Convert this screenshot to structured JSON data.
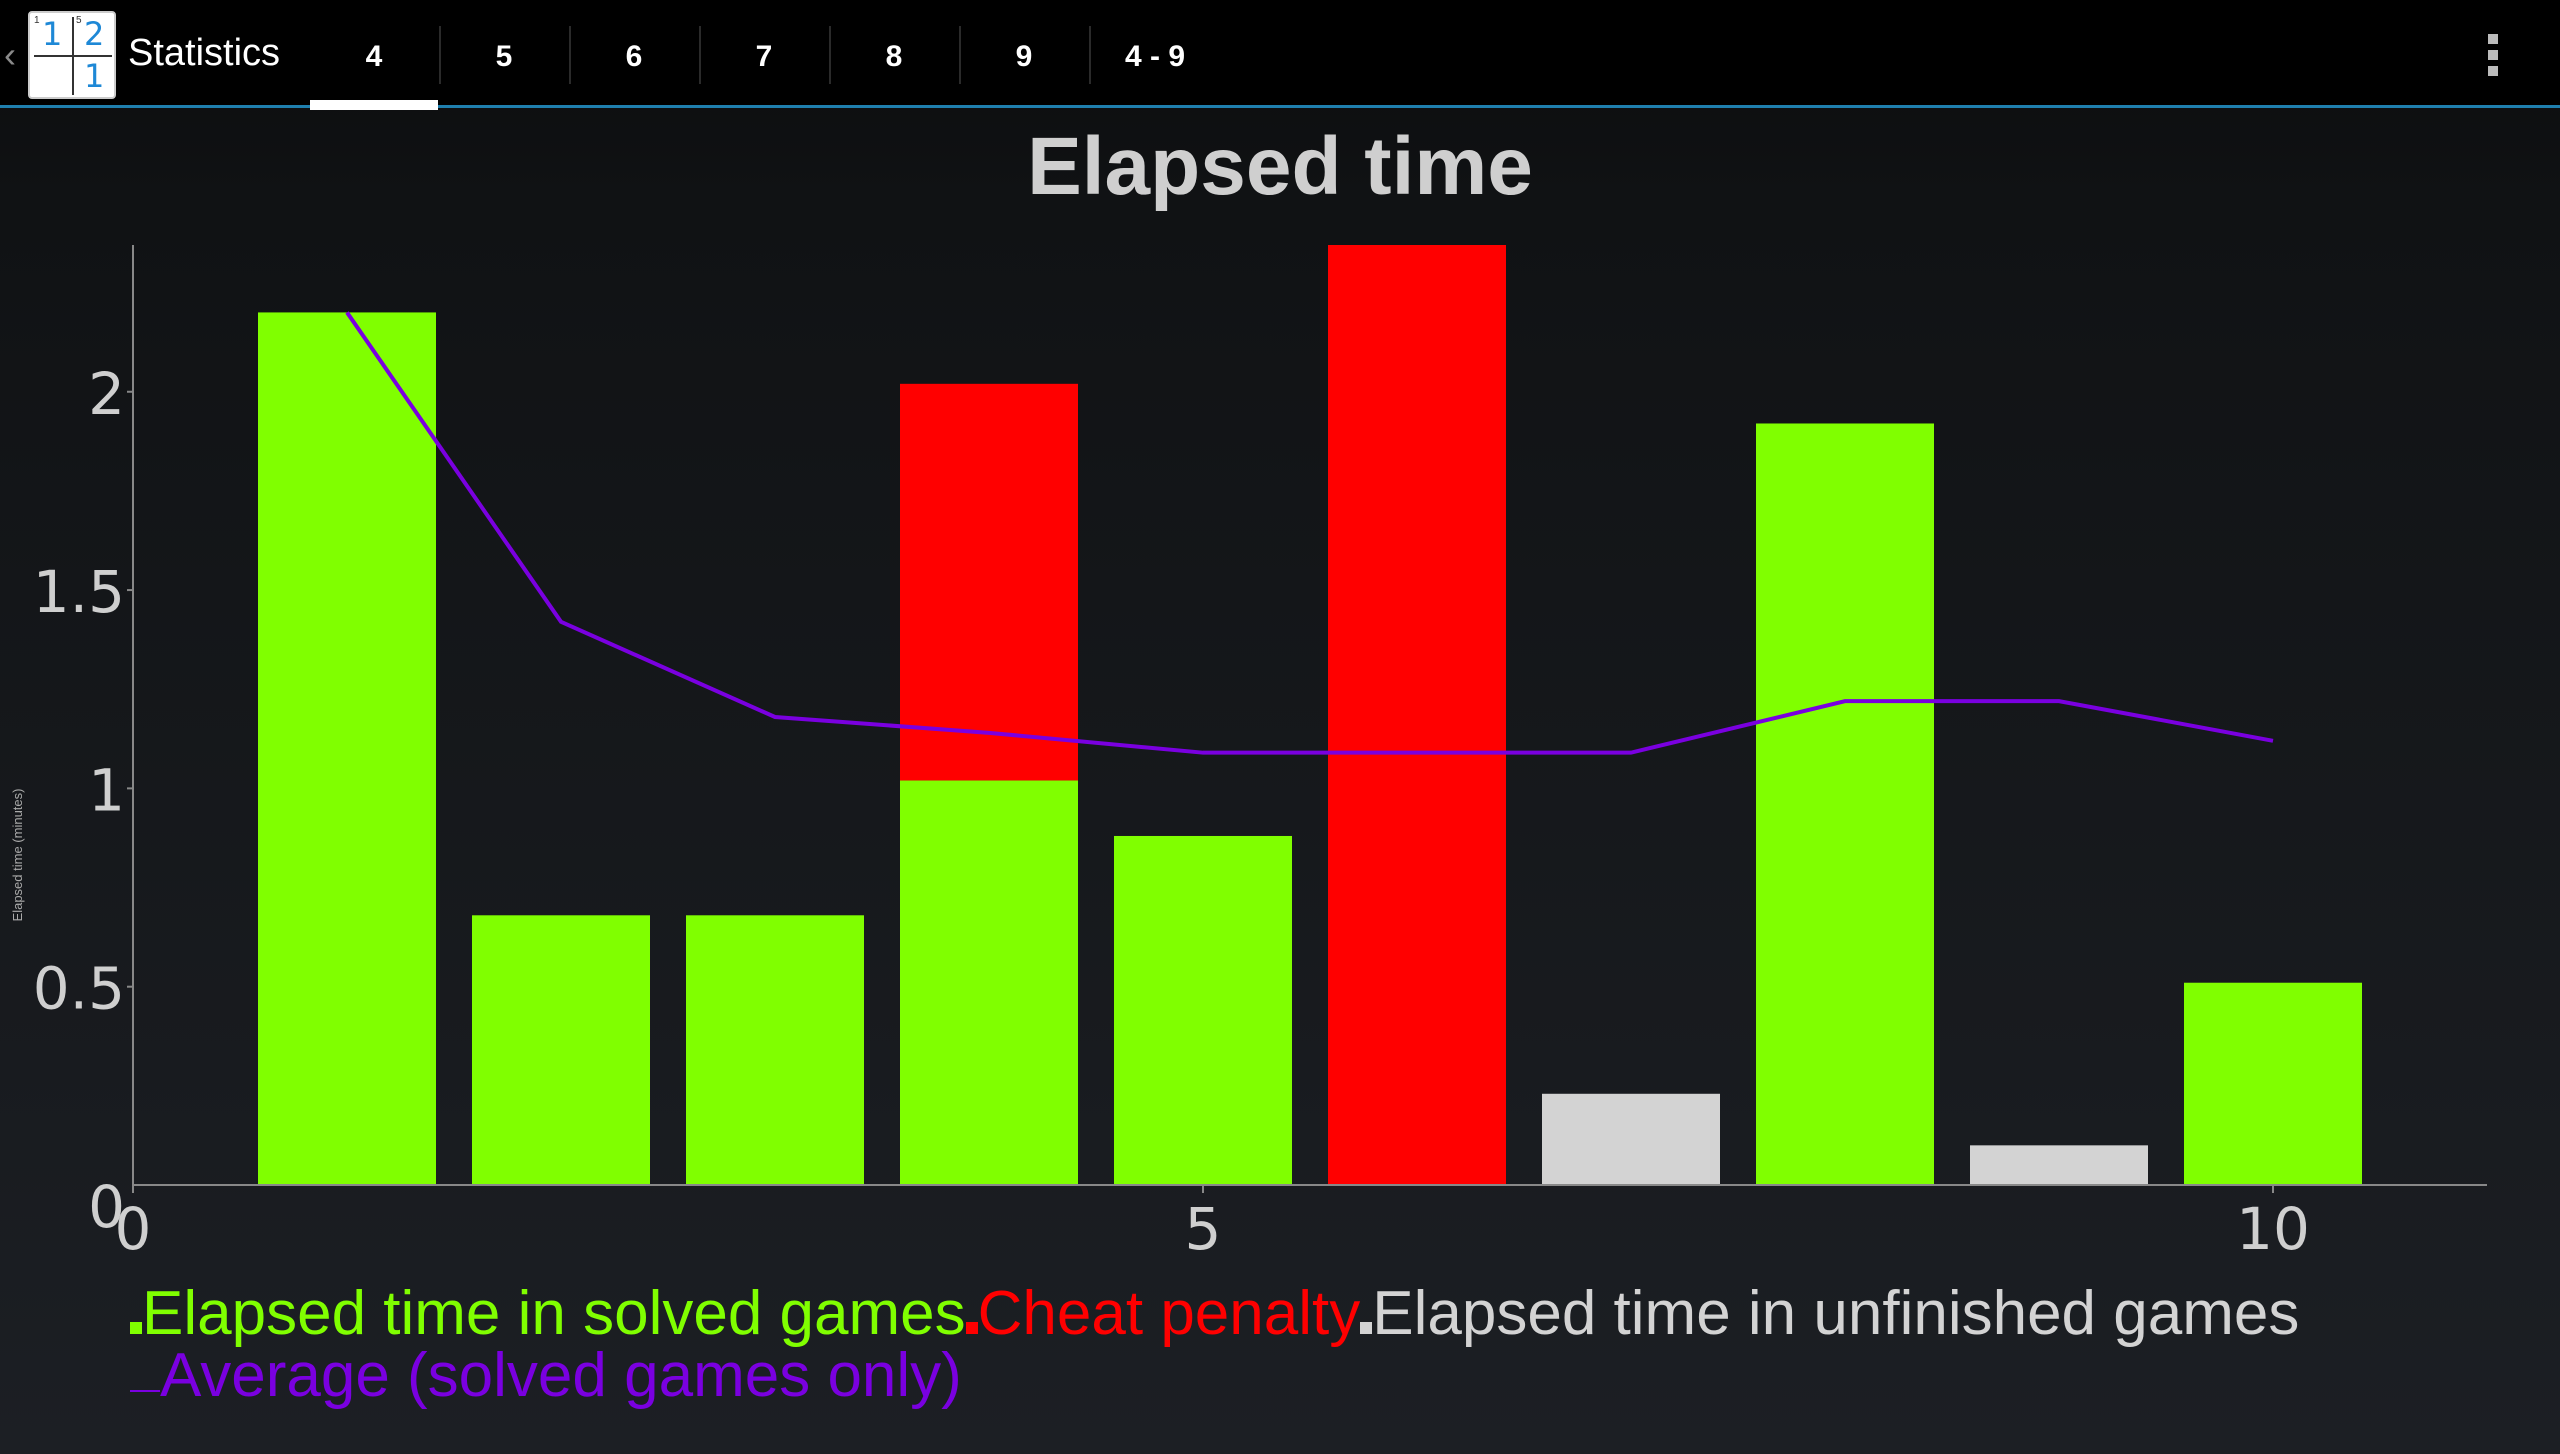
{
  "app": {
    "title": "Statistics",
    "up_icon": "chevron-left-icon",
    "icon_digits": [
      "1",
      "2",
      "1"
    ],
    "icon_cage_labels": [
      "1",
      "5"
    ]
  },
  "tabs": [
    {
      "label": "4",
      "selected": true
    },
    {
      "label": "5",
      "selected": false
    },
    {
      "label": "6",
      "selected": false
    },
    {
      "label": "7",
      "selected": false
    },
    {
      "label": "8",
      "selected": false
    },
    {
      "label": "9",
      "selected": false
    },
    {
      "label": "4 - 9",
      "selected": false
    }
  ],
  "menu": {
    "icon": "overflow-menu-icon"
  },
  "colors": {
    "solved": "#80ff00",
    "cheat": "#ff0000",
    "unfinished": "#d3d3d3",
    "average": "#7a00e0",
    "tab_underline": "#1f7fae"
  },
  "chart_data": {
    "type": "bar",
    "title": "Elapsed time",
    "ylabel": "Elapsed time (minutes)",
    "xlabel": "",
    "xlim": [
      0,
      11
    ],
    "ylim": [
      0,
      2.37
    ],
    "x_ticks": [
      "0",
      "5",
      "10"
    ],
    "y_ticks": [
      "0",
      "0.5",
      "1",
      "1.5",
      "2"
    ],
    "stacked": true,
    "x": [
      1,
      2,
      3,
      4,
      5,
      6,
      7,
      8,
      9,
      10
    ],
    "series": [
      {
        "name": "Elapsed time in solved games",
        "color": "#80ff00",
        "values": [
          2.2,
          0.68,
          0.68,
          1.02,
          0.88,
          0,
          0,
          1.92,
          0,
          0.51
        ]
      },
      {
        "name": "Cheat penalty",
        "color": "#ff0000",
        "values": [
          0,
          0,
          0,
          1.0,
          0,
          2.37,
          0,
          0,
          0,
          0
        ]
      },
      {
        "name": "Elapsed time in unfinished games",
        "color": "#d3d3d3",
        "values": [
          0,
          0,
          0,
          0,
          0,
          0,
          0.23,
          0,
          0.1,
          0
        ]
      }
    ],
    "line_series": {
      "name": "Average (solved games only)",
      "color": "#7a00e0",
      "x": [
        1,
        2,
        3,
        4,
        5,
        6,
        7,
        8,
        9,
        10
      ],
      "values": [
        2.2,
        1.42,
        1.18,
        1.14,
        1.09,
        1.09,
        1.09,
        1.22,
        1.22,
        1.12
      ]
    },
    "legend": [
      {
        "label": "Elapsed time in solved games",
        "color": "#80ff00"
      },
      {
        "label": "Cheat penalty",
        "color": "#ff0000"
      },
      {
        "label": "Elapsed time in unfinished games",
        "color": "#d3d3d3"
      },
      {
        "label": "Average (solved games only)",
        "color": "#7a00e0"
      }
    ],
    "legend_position": "bottom",
    "grid": false
  }
}
